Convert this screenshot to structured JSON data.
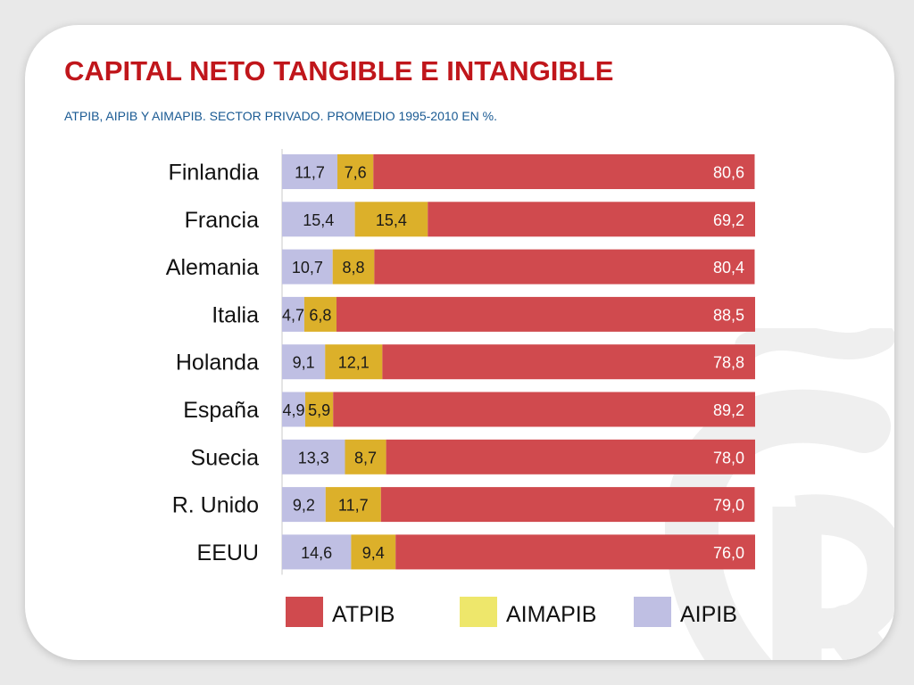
{
  "title": "CAPITAL NETO TANGIBLE E INTANGIBLE",
  "subtitle": "ATPIB, AIPIB Y AIMAPIB. SECTOR PRIVADO. PROMEDIO 1995-2010 EN %.",
  "colors": {
    "AIPIB": "#bfbfe3",
    "AIMAPIB": "#dcb02a",
    "AIMAPIB_legend": "#eee76b",
    "ATPIB": "#d04a4e",
    "title": "#c0161b",
    "subtitle": "#1a5a93",
    "watermark": "#efefef"
  },
  "chart_data": {
    "type": "bar",
    "stacked": true,
    "orientation": "horizontal",
    "normalized_to": 100,
    "categories": [
      "Finlandia",
      "Francia",
      "Alemania",
      "Italia",
      "Holanda",
      "España",
      "Suecia",
      "R. Unido",
      "EEUU"
    ],
    "series": [
      {
        "name": "AIPIB",
        "values": [
          11.7,
          15.4,
          10.7,
          4.7,
          9.1,
          4.9,
          13.3,
          9.2,
          14.6
        ]
      },
      {
        "name": "AIMAPIB",
        "values": [
          7.6,
          15.4,
          8.8,
          6.8,
          12.1,
          5.9,
          8.7,
          11.7,
          9.4
        ]
      },
      {
        "name": "ATPIB",
        "values": [
          80.6,
          69.2,
          80.4,
          88.5,
          78.8,
          89.2,
          78.0,
          79.0,
          76.0
        ]
      }
    ],
    "data_labels": {
      "AIPIB": [
        "11,7",
        "15,4",
        "10,7",
        "4,7",
        "9,1",
        "4,9",
        "13,3",
        "9,2",
        "14,6"
      ],
      "AIMAPIB": [
        "7,6",
        "15,4",
        "8,8",
        "6,8",
        "12,1",
        "5,9",
        "8,7",
        "11,7",
        "9,4"
      ],
      "ATPIB": [
        "80,6",
        "69,2",
        "80,4",
        "88,5",
        "78,8",
        "89,2",
        "78,0",
        "79,0",
        "76,0"
      ]
    },
    "legend": {
      "position": "bottom",
      "entries": [
        "ATPIB",
        "AIMAPIB",
        "AIPIB"
      ]
    },
    "grid": false
  }
}
